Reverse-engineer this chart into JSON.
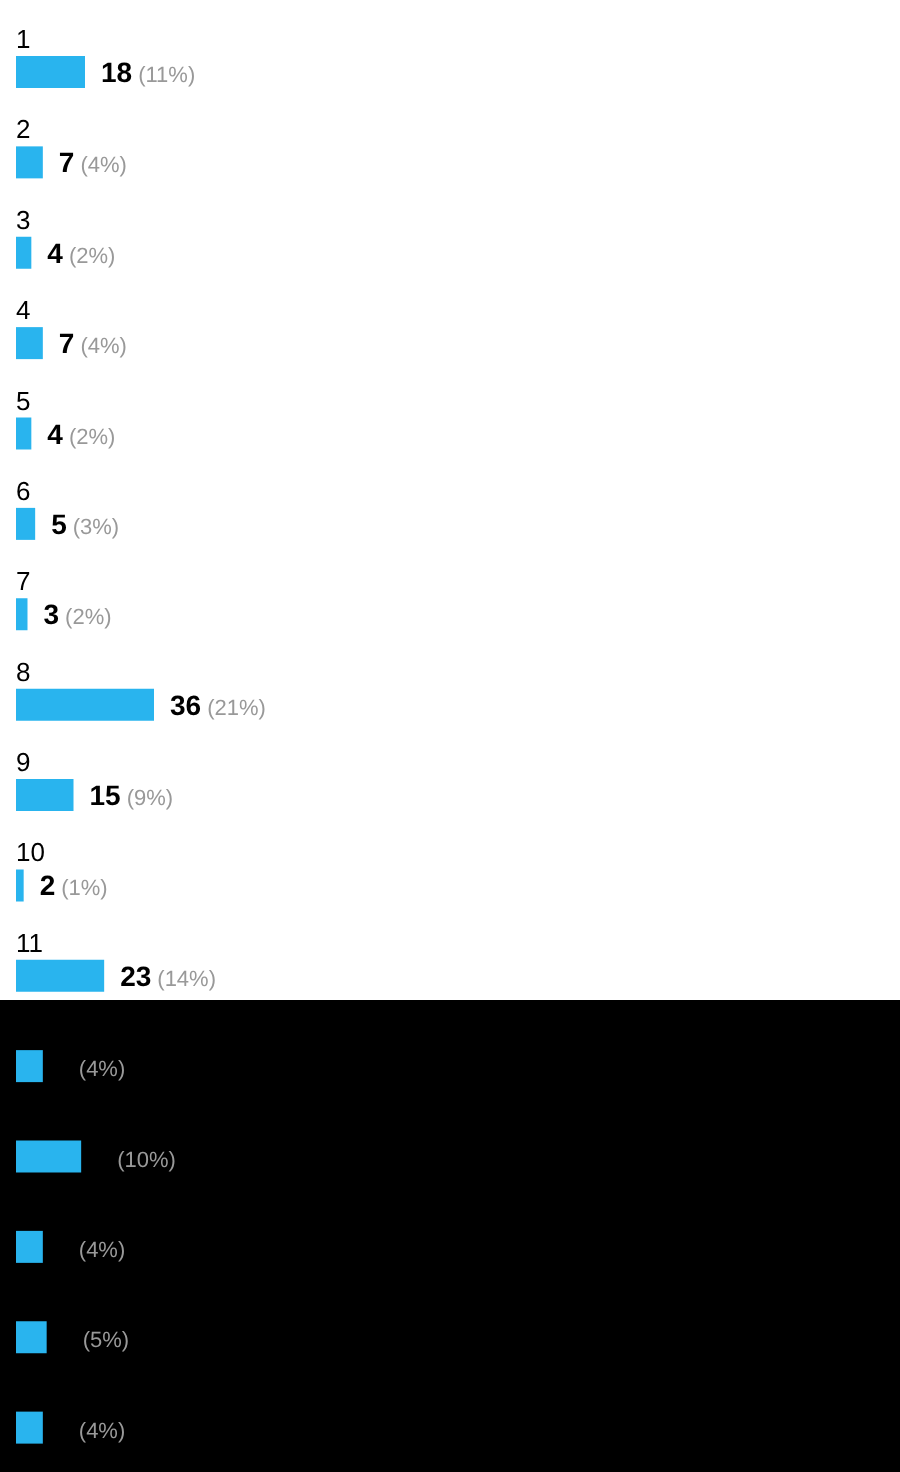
{
  "chart_data": {
    "type": "bar",
    "orientation": "horizontal",
    "categories": [
      "1",
      "2",
      "3",
      "4",
      "5",
      "6",
      "7",
      "8",
      "9",
      "10",
      "11",
      null,
      null,
      null,
      null,
      null
    ],
    "values": [
      18,
      7,
      4,
      7,
      4,
      5,
      3,
      36,
      15,
      2,
      23,
      7,
      17,
      7,
      8,
      7
    ],
    "color": "#29b4ee",
    "value_labels": [
      "18 (11%)",
      "7 (4%)",
      "4 (2%)",
      "7 (4%)",
      "4 (2%)",
      "5 (3%)",
      "3 (2%)",
      "36 (21%)",
      "15 (9%)",
      "2 (1%)",
      "23 (14%)",
      null,
      null,
      null,
      null,
      null
    ],
    "annotations": [
      "(4%)",
      "(10%)",
      "(4%)",
      "(5%)",
      "(4%)"
    ]
  }
}
